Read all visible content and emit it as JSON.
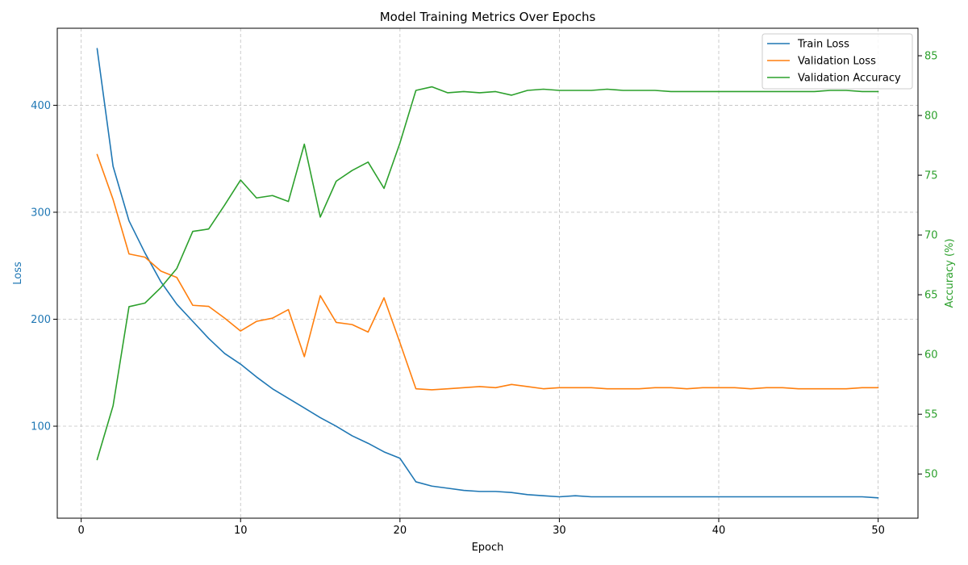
{
  "chart_data": {
    "type": "line",
    "title": "Model Training Metrics Over Epochs",
    "xlabel": "Epoch",
    "ylabel_left": "Loss",
    "ylabel_right": "Accuracy (%)",
    "xlim": [
      -1.5,
      52.5
    ],
    "ylim_left": [
      14,
      472
    ],
    "ylim_right": [
      46.3,
      87.3
    ],
    "xticks": [
      0,
      10,
      20,
      30,
      40,
      50
    ],
    "yticks_left": [
      100,
      200,
      300,
      400
    ],
    "yticks_right": [
      50,
      55,
      60,
      65,
      70,
      75,
      80,
      85
    ],
    "grid": true,
    "legend_position": "top-right",
    "colors": {
      "left_axis": "#1f77b4",
      "right_axis": "#2ca02c"
    },
    "x": [
      1,
      2,
      3,
      4,
      5,
      6,
      7,
      8,
      9,
      10,
      11,
      12,
      13,
      14,
      15,
      16,
      17,
      18,
      19,
      20,
      21,
      22,
      23,
      24,
      25,
      26,
      27,
      28,
      29,
      30,
      31,
      32,
      33,
      34,
      35,
      36,
      37,
      38,
      39,
      40,
      41,
      42,
      43,
      44,
      45,
      46,
      47,
      48,
      49,
      50
    ],
    "series": [
      {
        "name": "Train Loss",
        "axis": "left",
        "color": "#1f77b4",
        "values": [
          453,
          343,
          292,
          262,
          235,
          214,
          198,
          182,
          168,
          158,
          146,
          135,
          126,
          117,
          108,
          100,
          91,
          84,
          76,
          70,
          48,
          44,
          42,
          40,
          39,
          39,
          38,
          36,
          35,
          34,
          35,
          34,
          34,
          34,
          34,
          34,
          34,
          34,
          34,
          34,
          34,
          34,
          34,
          34,
          34,
          34,
          34,
          34,
          34,
          33
        ]
      },
      {
        "name": "Validation Loss",
        "axis": "left",
        "color": "#ff7f0e",
        "values": [
          354,
          312,
          261,
          258,
          245,
          239,
          213,
          212,
          201,
          189,
          198,
          201,
          209,
          165,
          222,
          197,
          195,
          188,
          220,
          178,
          135,
          134,
          135,
          136,
          137,
          136,
          139,
          137,
          135,
          136,
          136,
          136,
          135,
          135,
          135,
          136,
          136,
          135,
          136,
          136,
          136,
          135,
          136,
          136,
          135,
          135,
          135,
          135,
          136,
          136
        ]
      },
      {
        "name": "Validation Accuracy",
        "axis": "right",
        "color": "#2ca02c",
        "values": [
          51.2,
          55.7,
          64.0,
          64.3,
          65.6,
          67.2,
          70.3,
          70.5,
          72.5,
          74.6,
          73.1,
          73.3,
          72.8,
          77.6,
          71.5,
          74.5,
          75.4,
          76.1,
          73.9,
          77.7,
          82.1,
          82.4,
          81.9,
          82.0,
          81.9,
          82.0,
          81.7,
          82.1,
          82.2,
          82.1,
          82.1,
          82.1,
          82.2,
          82.1,
          82.1,
          82.1,
          82.0,
          82.0,
          82.0,
          82.0,
          82.0,
          82.0,
          82.0,
          82.0,
          82.0,
          82.0,
          82.1,
          82.1,
          82.0,
          82.0
        ]
      }
    ]
  }
}
